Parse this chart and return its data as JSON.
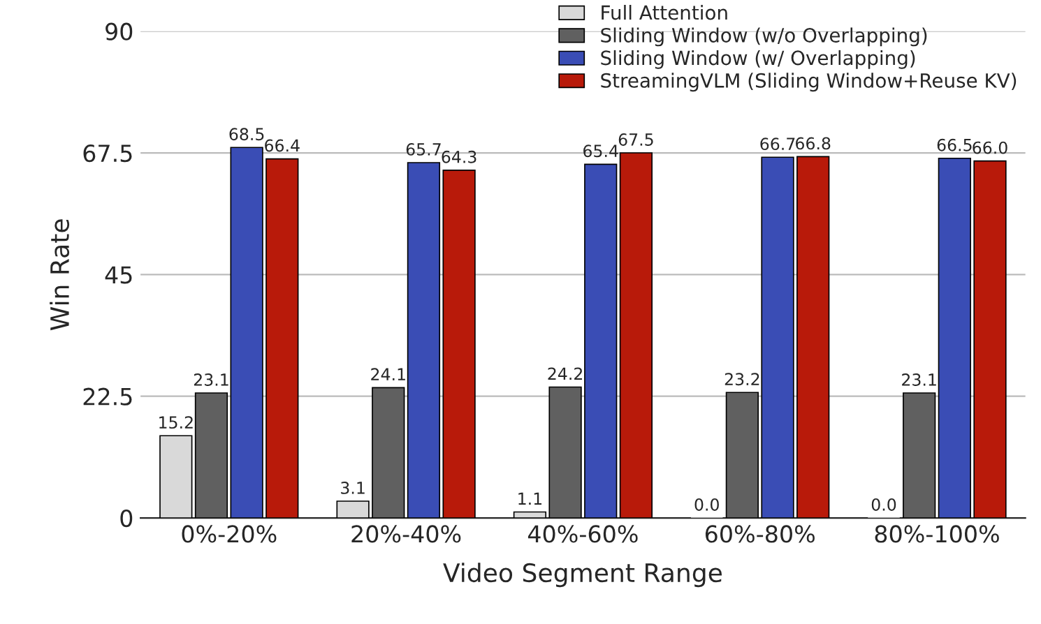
{
  "chart_data": {
    "type": "bar",
    "xlabel": "Video Segment Range",
    "ylabel": "Win Rate",
    "categories": [
      "0%-20%",
      "20%-40%",
      "40%-60%",
      "60%-80%",
      "80%-100%"
    ],
    "series": [
      {
        "name": "Full Attention",
        "color": "#d9d9d9",
        "values": [
          15.2,
          3.1,
          1.1,
          0.0,
          0.0
        ],
        "value_labels": [
          "15.2",
          "3.1",
          "1.1",
          "0.0",
          "0.0"
        ]
      },
      {
        "name": "Sliding Window (w/o Overlapping)",
        "color": "#606060",
        "values": [
          23.1,
          24.1,
          24.2,
          23.2,
          23.1
        ]
      },
      {
        "name": "Sliding Window (w/ Overlapping)",
        "color": "#3a4db5",
        "values": [
          68.5,
          65.7,
          65.4,
          66.7,
          66.5
        ]
      },
      {
        "name": "StreamingVLM (Sliding Window+Reuse KV)",
        "color": "#b81a0a",
        "values": [
          66.4,
          64.3,
          67.5,
          66.8,
          66.0
        ],
        "value_labels": [
          "66.4",
          "64.3",
          "67.5",
          "66.8",
          "66.0"
        ]
      }
    ],
    "ylim": [
      0,
      90
    ],
    "yticks": [
      0,
      22.5,
      45,
      67.5,
      90
    ],
    "grid": "y",
    "legend": "top right",
    "data_labels": true
  }
}
